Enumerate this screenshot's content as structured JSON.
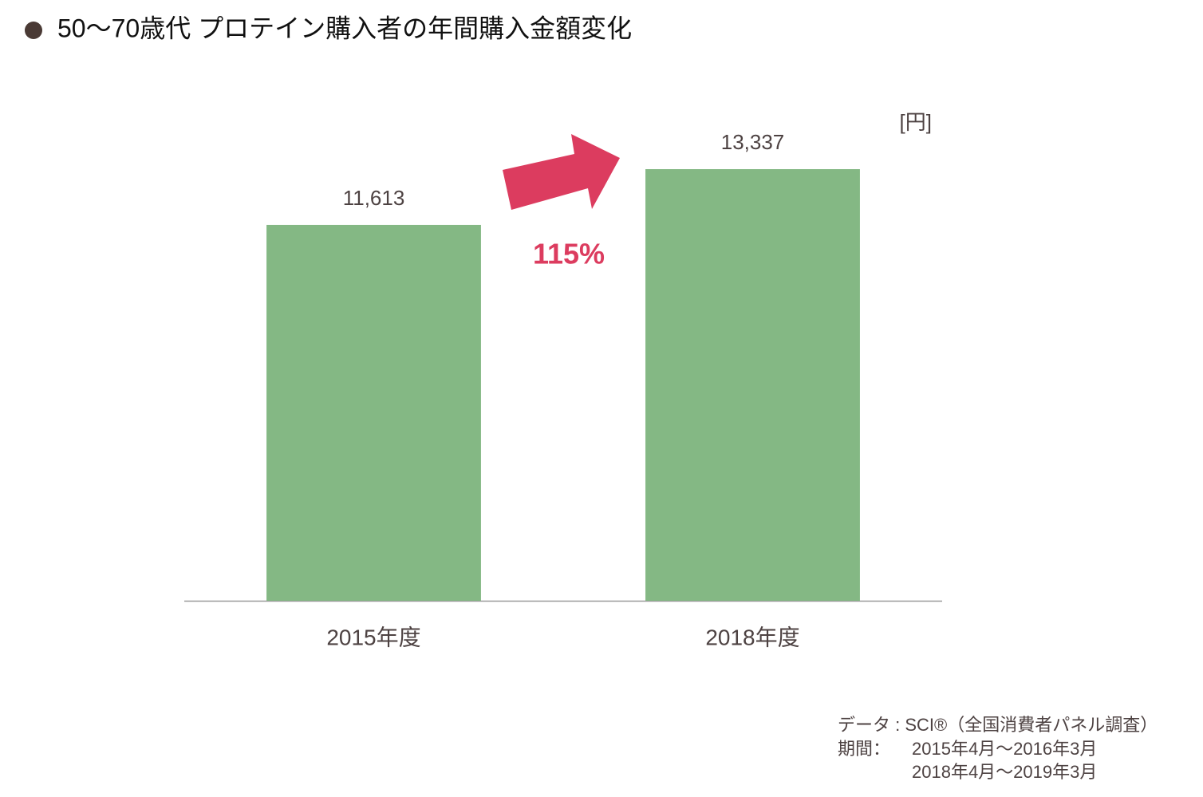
{
  "chart_data": {
    "type": "bar",
    "title": "50～70歳代 プロテイン購入者の年間購入金額変化",
    "unit_label": "[円]",
    "categories": [
      "2015年度",
      "2018年度"
    ],
    "values": [
      11613,
      13337
    ],
    "value_labels": [
      "11,613",
      "13,337"
    ],
    "color": "#84b884",
    "ylim": [
      0,
      16000
    ],
    "annotation": "115%",
    "source": "データ : SCI®（全国消費者パネル調査）",
    "period_label": "期間：",
    "periods": [
      "2015年4月～2016年3月",
      "2018年4月～2019年3月"
    ]
  }
}
